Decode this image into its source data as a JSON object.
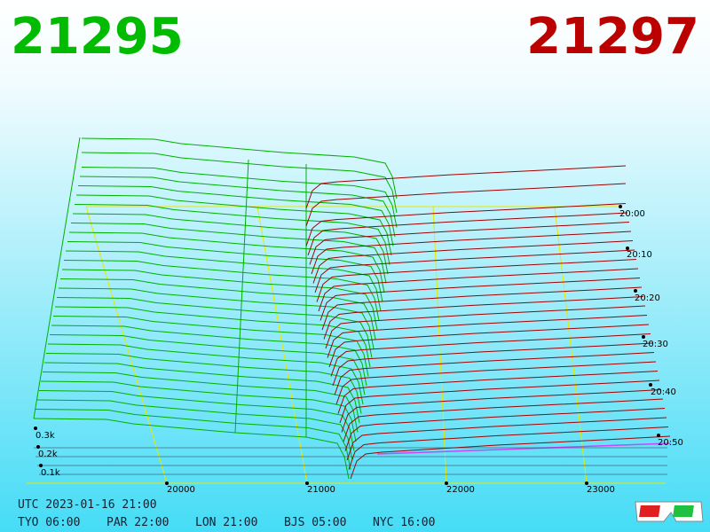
{
  "header": {
    "bid": "21295",
    "ask": "21297"
  },
  "price_axis": [
    "20000",
    "21000",
    "22000",
    "23000"
  ],
  "volume_axis": [
    "0.3k",
    "0.2k",
    "0.1k"
  ],
  "time_axis": [
    "20:00",
    "20:10",
    "20:20",
    "20:30",
    "20:40",
    "20:50"
  ],
  "footer": {
    "utc": "UTC 2023-01-16 21:00",
    "cities": [
      "TYO 06:00",
      "PAR 22:00",
      "LON 21:00",
      "BJS 05:00",
      "NYC 16:00"
    ]
  }
}
